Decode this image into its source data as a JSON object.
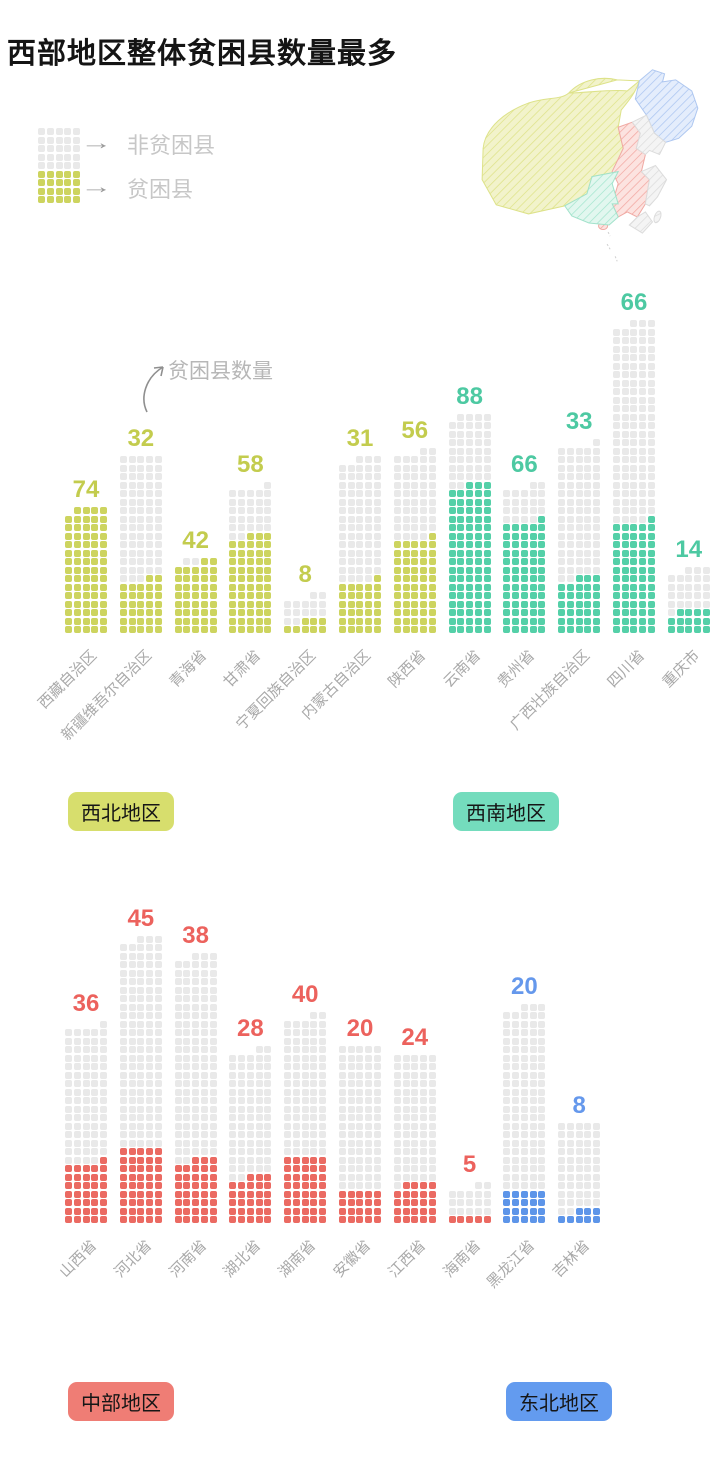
{
  "title": "西部地区整体贫困县数量最多",
  "legend": {
    "non_poor_label": "非贫困县",
    "poor_label": "贫困县",
    "grid_cols": 5,
    "gray_rows": 5,
    "green_rows": 4
  },
  "annotation_label": "贫困县数量",
  "colors": {
    "gray_dot": "#e9e9e9",
    "axis_label": "#a9a9a9",
    "legend_text": "#c7c7c7",
    "title_text": "#141414",
    "annotation_text": "#b7b7b7",
    "arrow": "#8f8f8f"
  },
  "chart_data": [
    {
      "type": "bar",
      "subtype": "waffle-dot-columns",
      "dot_columns_per_bar": 5,
      "note": "每个点代表一个县；彩色点为贫困县，灰色点为非贫困县",
      "groups": {
        "nw": {
          "label": "西北地区",
          "dot": "#cdd45f",
          "num": "#c3cc4e",
          "badge": "#d7de6d"
        },
        "sw": {
          "label": "西南地区",
          "dot": "#54d0a8",
          "num": "#4dc9a2",
          "badge": "#74dcbd"
        }
      },
      "categories": [
        "西藏自治区",
        "新疆维吾尔自治区",
        "青海省",
        "甘肃省",
        "宁夏回族自治区",
        "内蒙古自治区",
        "陕西省",
        "云南省",
        "贵州省",
        "广西壮族自治区",
        "四川省",
        "重庆市"
      ],
      "values": [
        74,
        32,
        42,
        58,
        8,
        31,
        56,
        88,
        66,
        33,
        66,
        14
      ],
      "bars": [
        {
          "label": "西藏自治区",
          "poverty": 74,
          "total": 74,
          "group": "nw"
        },
        {
          "label": "新疆维吾尔自治区",
          "poverty": 32,
          "total": 105,
          "group": "nw"
        },
        {
          "label": "青海省",
          "poverty": 42,
          "total": 44,
          "group": "nw"
        },
        {
          "label": "甘肃省",
          "poverty": 58,
          "total": 86,
          "group": "nw"
        },
        {
          "label": "宁夏回族自治区",
          "poverty": 8,
          "total": 22,
          "group": "nw"
        },
        {
          "label": "内蒙古自治区",
          "poverty": 31,
          "total": 103,
          "group": "nw"
        },
        {
          "label": "陕西省",
          "poverty": 56,
          "total": 107,
          "group": "nw"
        },
        {
          "label": "云南省",
          "poverty": 88,
          "total": 129,
          "group": "sw"
        },
        {
          "label": "贵州省",
          "poverty": 66,
          "total": 87,
          "group": "sw"
        },
        {
          "label": "广西壮族自治区",
          "poverty": 33,
          "total": 111,
          "group": "sw"
        },
        {
          "label": "四川省",
          "poverty": 66,
          "total": 183,
          "group": "sw"
        },
        {
          "label": "重庆市",
          "poverty": 14,
          "total": 38,
          "group": "sw"
        }
      ]
    },
    {
      "type": "bar",
      "subtype": "waffle-dot-columns",
      "dot_columns_per_bar": 5,
      "groups": {
        "c": {
          "label": "中部地区",
          "dot": "#eb6a62",
          "num": "#ec625d",
          "badge": "#ef7d75"
        },
        "ne": {
          "label": "东北地区",
          "dot": "#5d95e9",
          "num": "#6598ec",
          "badge": "#639bef"
        }
      },
      "categories": [
        "山西省",
        "河北省",
        "河南省",
        "湖北省",
        "湖南省",
        "安徽省",
        "江西省",
        "海南省",
        "黑龙江省",
        "吉林省"
      ],
      "values": [
        36,
        45,
        38,
        28,
        40,
        20,
        24,
        5,
        20,
        8
      ],
      "bars": [
        {
          "label": "山西省",
          "poverty": 36,
          "total": 116,
          "group": "c"
        },
        {
          "label": "河北省",
          "poverty": 45,
          "total": 168,
          "group": "c"
        },
        {
          "label": "河南省",
          "poverty": 38,
          "total": 158,
          "group": "c"
        },
        {
          "label": "湖北省",
          "poverty": 28,
          "total": 102,
          "group": "c"
        },
        {
          "label": "湖南省",
          "poverty": 40,
          "total": 122,
          "group": "c"
        },
        {
          "label": "安徽省",
          "poverty": 20,
          "total": 105,
          "group": "c"
        },
        {
          "label": "江西省",
          "poverty": 24,
          "total": 100,
          "group": "c"
        },
        {
          "label": "海南省",
          "poverty": 5,
          "total": 22,
          "group": "c"
        },
        {
          "label": "黑龙江省",
          "poverty": 20,
          "total": 128,
          "group": "ne"
        },
        {
          "label": "吉林省",
          "poverty": 8,
          "total": 60,
          "group": "ne"
        }
      ]
    }
  ],
  "map_region_colors": {
    "northwest": "#eef0c0",
    "southwest": "#d5f2e6",
    "central": "#f9dad6",
    "northeast": "#dce8fb",
    "east_other": "#f1f1f1"
  }
}
